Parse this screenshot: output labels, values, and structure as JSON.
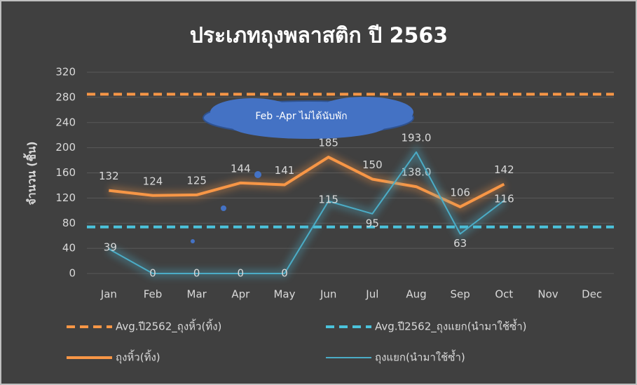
{
  "chart_data": {
    "type": "line",
    "title": "ประเภทถุงพลาสติก ปี 2563",
    "y_label": "จำนวน (ชิ้น)",
    "annotation": "Feb -Apr ไม่ได้นับพัก",
    "categories": [
      "Jan",
      "Feb",
      "Mar",
      "Apr",
      "May",
      "Jun",
      "Jul",
      "Aug",
      "Sep",
      "Oct",
      "Nov",
      "Dec"
    ],
    "ylim": [
      0,
      320
    ],
    "yticks": [
      0,
      40,
      80,
      120,
      160,
      200,
      240,
      280,
      320
    ],
    "grid": true,
    "reference_lines": [
      {
        "name": "Avg.ปี2562_ถุงหิ้ว(ทิ้ง)",
        "color": "#f79646",
        "value": 285
      },
      {
        "name": "Avg.ปี2562_ถุงแยก(นำมาใช้ซ้ำ)",
        "color": "#4bc3dc",
        "value": 74
      }
    ],
    "series": [
      {
        "name": "ถุงหิ้ว(ทิ้ง)",
        "color": "#f79646",
        "values": [
          132,
          124,
          125,
          144,
          141,
          185,
          150,
          138,
          106,
          142,
          null,
          null
        ],
        "value_labels": [
          "132",
          "124",
          "125",
          "144",
          "141",
          "185",
          "150",
          "138.0",
          "106",
          "142",
          null,
          null
        ]
      },
      {
        "name": "ถุงแยก(นำมาใช้ซ้ำ)",
        "color": "#4bacc6",
        "values": [
          39,
          0,
          0,
          0,
          0,
          115,
          95,
          193,
          63,
          116,
          null,
          null
        ],
        "value_labels": [
          "39",
          "0",
          "0",
          "0",
          "0",
          "115",
          "95",
          "193.0",
          "63",
          "116",
          null,
          null
        ]
      }
    ]
  }
}
